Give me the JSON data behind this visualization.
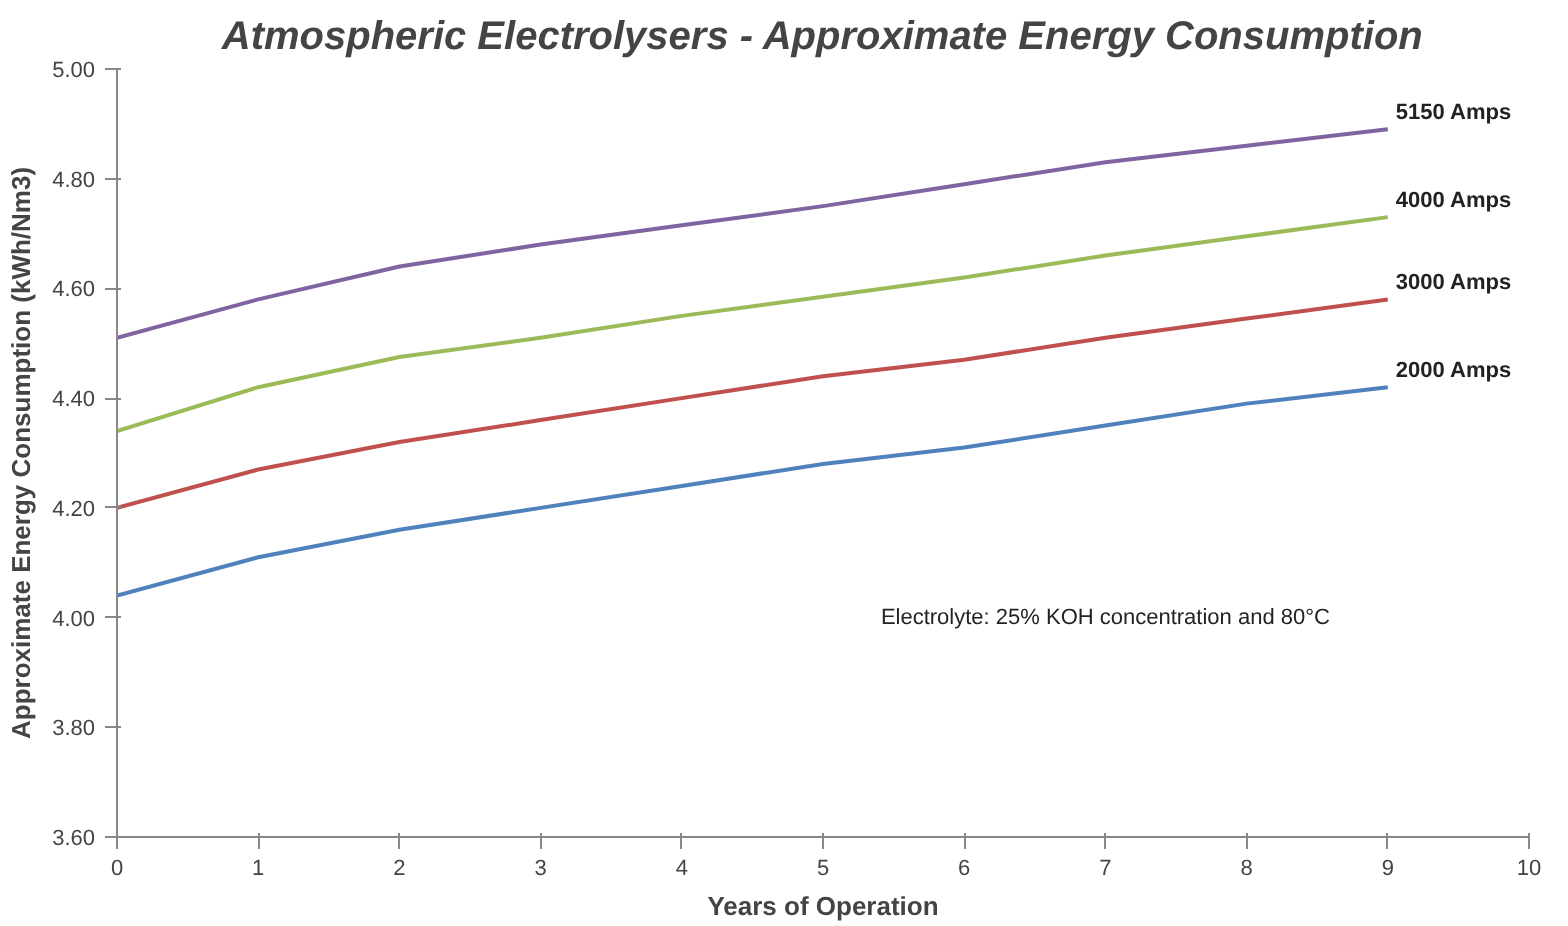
{
  "chart_data": {
    "type": "line",
    "title": "Atmospheric Electrolysers - Approximate Energy Consumption",
    "xlabel": "Years of Operation",
    "ylabel": "Approximate Energy Consumption (kWh/Nm3)",
    "x": [
      0,
      1,
      2,
      3,
      4,
      5,
      6,
      7,
      8,
      9
    ],
    "series": [
      {
        "name": "5150 Amps",
        "color": "#8064a2",
        "values": [
          4.51,
          4.58,
          4.64,
          4.68,
          4.715,
          4.75,
          4.79,
          4.83,
          4.86,
          4.89
        ]
      },
      {
        "name": "4000 Amps",
        "color": "#9bbb59",
        "values": [
          4.34,
          4.42,
          4.475,
          4.51,
          4.55,
          4.585,
          4.62,
          4.66,
          4.695,
          4.73
        ]
      },
      {
        "name": "3000 Amps",
        "color": "#c0504d",
        "values": [
          4.2,
          4.27,
          4.32,
          4.36,
          4.4,
          4.44,
          4.47,
          4.51,
          4.545,
          4.58
        ]
      },
      {
        "name": "2000 Amps",
        "color": "#4f81bd",
        "values": [
          4.04,
          4.11,
          4.16,
          4.2,
          4.24,
          4.28,
          4.31,
          4.35,
          4.39,
          4.42
        ]
      }
    ],
    "xlim": [
      0,
      10
    ],
    "xticks": [
      0,
      1,
      2,
      3,
      4,
      5,
      6,
      7,
      8,
      9,
      10
    ],
    "ylim": [
      3.6,
      5.0
    ],
    "yticks": [
      {
        "value": 3.6,
        "label": "3.60"
      },
      {
        "value": 3.8,
        "label": "3.80"
      },
      {
        "value": 4.0,
        "label": "4.00"
      },
      {
        "value": 4.2,
        "label": "4.20"
      },
      {
        "value": 4.4,
        "label": "4.40"
      },
      {
        "value": 4.6,
        "label": "4.60"
      },
      {
        "value": 4.8,
        "label": "4.80"
      },
      {
        "value": 5.0,
        "label": "5.00"
      }
    ],
    "annotations": [
      "Electrolyte: 25% KOH concentration and 80°C"
    ],
    "grid": false,
    "marker": "none",
    "line_style": "solid"
  }
}
